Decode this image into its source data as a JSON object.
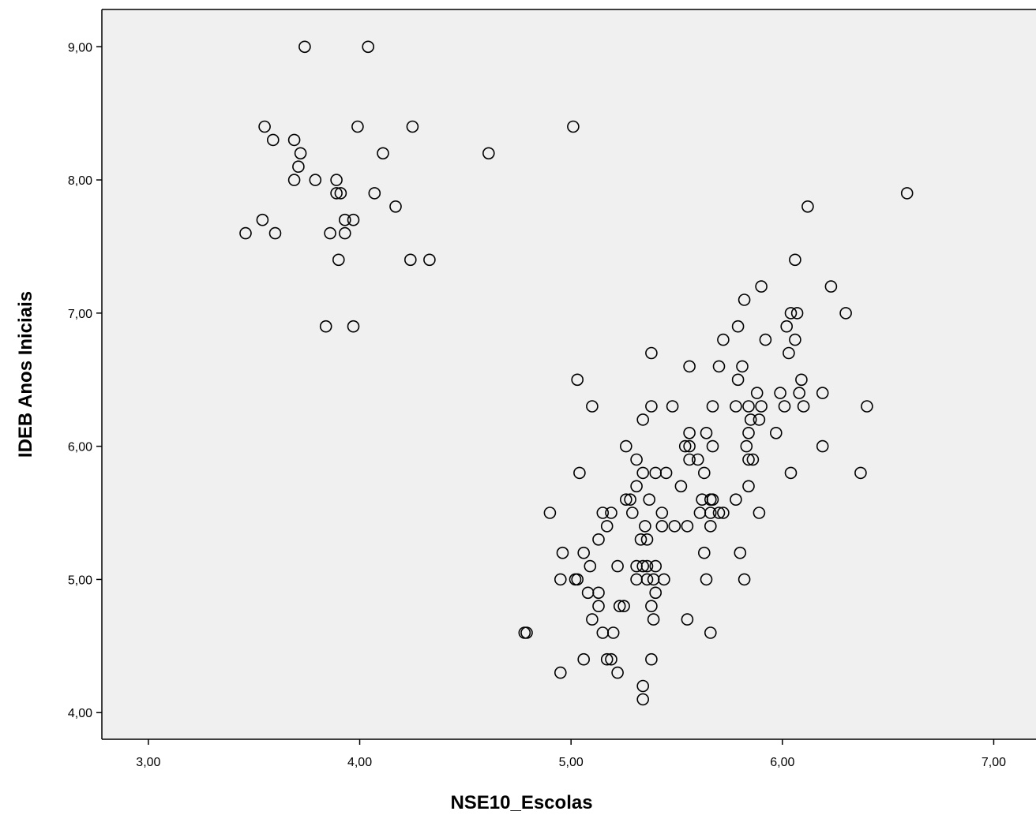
{
  "chart_data": {
    "type": "scatter",
    "title": "",
    "xlabel": "NSE10_Escolas",
    "ylabel": "IDEB Anos Iniciais",
    "xlim": [
      2.78,
      7.2
    ],
    "ylim": [
      3.8,
      9.28
    ],
    "x_ticks": [
      3,
      4,
      5,
      6,
      7
    ],
    "x_tick_labels": [
      "3,00",
      "4,00",
      "5,00",
      "6,00",
      "7,00"
    ],
    "y_ticks": [
      4,
      5,
      6,
      7,
      8,
      9
    ],
    "y_tick_labels": [
      "4,00",
      "5,00",
      "6,00",
      "7,00",
      "8,00",
      "9,00"
    ],
    "grid": false,
    "background_color": "#f0f0f0",
    "marker": "open-circle",
    "points": [
      [
        3.74,
        9.0
      ],
      [
        4.04,
        9.0
      ],
      [
        3.55,
        8.4
      ],
      [
        3.99,
        8.4
      ],
      [
        4.25,
        8.4
      ],
      [
        5.01,
        8.4
      ],
      [
        3.59,
        8.3
      ],
      [
        3.69,
        8.3
      ],
      [
        3.72,
        8.2
      ],
      [
        4.11,
        8.2
      ],
      [
        4.61,
        8.2
      ],
      [
        3.71,
        8.1
      ],
      [
        3.69,
        8.0
      ],
      [
        3.79,
        8.0
      ],
      [
        3.89,
        8.0
      ],
      [
        3.89,
        7.9
      ],
      [
        3.91,
        7.9
      ],
      [
        4.07,
        7.9
      ],
      [
        6.59,
        7.9
      ],
      [
        4.17,
        7.8
      ],
      [
        6.12,
        7.8
      ],
      [
        3.54,
        7.7
      ],
      [
        3.93,
        7.7
      ],
      [
        3.97,
        7.7
      ],
      [
        3.46,
        7.6
      ],
      [
        3.6,
        7.6
      ],
      [
        3.86,
        7.6
      ],
      [
        3.93,
        7.6
      ],
      [
        3.9,
        7.4
      ],
      [
        4.24,
        7.4
      ],
      [
        4.33,
        7.4
      ],
      [
        6.06,
        7.4
      ],
      [
        5.9,
        7.2
      ],
      [
        6.23,
        7.2
      ],
      [
        5.82,
        7.1
      ],
      [
        6.04,
        7.0
      ],
      [
        6.07,
        7.0
      ],
      [
        6.3,
        7.0
      ],
      [
        3.84,
        6.9
      ],
      [
        3.97,
        6.9
      ],
      [
        5.79,
        6.9
      ],
      [
        6.02,
        6.9
      ],
      [
        5.72,
        6.8
      ],
      [
        5.92,
        6.8
      ],
      [
        6.06,
        6.8
      ],
      [
        5.38,
        6.7
      ],
      [
        6.03,
        6.7
      ],
      [
        5.56,
        6.6
      ],
      [
        5.7,
        6.6
      ],
      [
        5.81,
        6.6
      ],
      [
        5.03,
        6.5
      ],
      [
        5.79,
        6.5
      ],
      [
        6.09,
        6.5
      ],
      [
        5.88,
        6.4
      ],
      [
        5.99,
        6.4
      ],
      [
        6.08,
        6.4
      ],
      [
        6.19,
        6.4
      ],
      [
        5.1,
        6.3
      ],
      [
        5.38,
        6.3
      ],
      [
        5.48,
        6.3
      ],
      [
        5.67,
        6.3
      ],
      [
        5.78,
        6.3
      ],
      [
        5.84,
        6.3
      ],
      [
        5.9,
        6.3
      ],
      [
        6.01,
        6.3
      ],
      [
        6.1,
        6.3
      ],
      [
        6.4,
        6.3
      ],
      [
        5.34,
        6.2
      ],
      [
        5.85,
        6.2
      ],
      [
        5.89,
        6.2
      ],
      [
        5.56,
        6.1
      ],
      [
        5.64,
        6.1
      ],
      [
        5.84,
        6.1
      ],
      [
        5.97,
        6.1
      ],
      [
        5.26,
        6.0
      ],
      [
        5.54,
        6.0
      ],
      [
        5.56,
        6.0
      ],
      [
        5.67,
        6.0
      ],
      [
        5.83,
        6.0
      ],
      [
        6.19,
        6.0
      ],
      [
        5.31,
        5.9
      ],
      [
        5.56,
        5.9
      ],
      [
        5.6,
        5.9
      ],
      [
        5.84,
        5.9
      ],
      [
        5.86,
        5.9
      ],
      [
        5.04,
        5.8
      ],
      [
        5.34,
        5.8
      ],
      [
        5.4,
        5.8
      ],
      [
        5.45,
        5.8
      ],
      [
        5.63,
        5.8
      ],
      [
        6.04,
        5.8
      ],
      [
        6.37,
        5.8
      ],
      [
        5.31,
        5.7
      ],
      [
        5.52,
        5.7
      ],
      [
        5.84,
        5.7
      ],
      [
        5.26,
        5.6
      ],
      [
        5.28,
        5.6
      ],
      [
        5.37,
        5.6
      ],
      [
        5.62,
        5.6
      ],
      [
        5.66,
        5.6
      ],
      [
        5.67,
        5.6
      ],
      [
        5.78,
        5.6
      ],
      [
        4.9,
        5.5
      ],
      [
        5.15,
        5.5
      ],
      [
        5.19,
        5.5
      ],
      [
        5.29,
        5.5
      ],
      [
        5.43,
        5.5
      ],
      [
        5.61,
        5.5
      ],
      [
        5.66,
        5.5
      ],
      [
        5.7,
        5.5
      ],
      [
        5.72,
        5.5
      ],
      [
        5.89,
        5.5
      ],
      [
        5.17,
        5.4
      ],
      [
        5.35,
        5.4
      ],
      [
        5.43,
        5.4
      ],
      [
        5.49,
        5.4
      ],
      [
        5.55,
        5.4
      ],
      [
        5.66,
        5.4
      ],
      [
        5.13,
        5.3
      ],
      [
        5.33,
        5.3
      ],
      [
        5.36,
        5.3
      ],
      [
        4.96,
        5.2
      ],
      [
        5.06,
        5.2
      ],
      [
        5.63,
        5.2
      ],
      [
        5.8,
        5.2
      ],
      [
        5.09,
        5.1
      ],
      [
        5.22,
        5.1
      ],
      [
        5.31,
        5.1
      ],
      [
        5.34,
        5.1
      ],
      [
        5.36,
        5.1
      ],
      [
        5.4,
        5.1
      ],
      [
        4.95,
        5.0
      ],
      [
        5.02,
        5.0
      ],
      [
        5.03,
        5.0
      ],
      [
        5.31,
        5.0
      ],
      [
        5.36,
        5.0
      ],
      [
        5.39,
        5.0
      ],
      [
        5.44,
        5.0
      ],
      [
        5.64,
        5.0
      ],
      [
        5.82,
        5.0
      ],
      [
        5.08,
        4.9
      ],
      [
        5.13,
        4.9
      ],
      [
        5.4,
        4.9
      ],
      [
        5.13,
        4.8
      ],
      [
        5.23,
        4.8
      ],
      [
        5.25,
        4.8
      ],
      [
        5.38,
        4.8
      ],
      [
        5.1,
        4.7
      ],
      [
        5.39,
        4.7
      ],
      [
        5.55,
        4.7
      ],
      [
        4.78,
        4.6
      ],
      [
        4.79,
        4.6
      ],
      [
        5.15,
        4.6
      ],
      [
        5.2,
        4.6
      ],
      [
        5.66,
        4.6
      ],
      [
        5.06,
        4.4
      ],
      [
        5.17,
        4.4
      ],
      [
        5.19,
        4.4
      ],
      [
        5.38,
        4.4
      ],
      [
        4.95,
        4.3
      ],
      [
        5.22,
        4.3
      ],
      [
        5.34,
        4.2
      ],
      [
        5.34,
        4.1
      ]
    ]
  }
}
